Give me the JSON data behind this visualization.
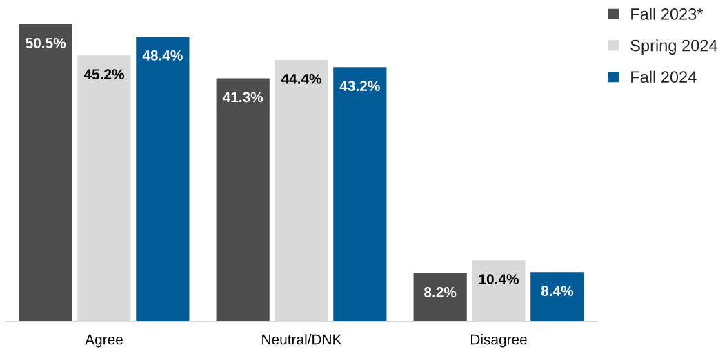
{
  "chart_data": {
    "type": "bar",
    "categories": [
      "Agree",
      "Neutral/DNK",
      "Disagree"
    ],
    "series": [
      {
        "name": "Fall 2023*",
        "color": "#4d4d4d",
        "values": [
          50.5,
          41.3,
          8.2
        ],
        "value_labels": [
          "50.5%",
          "41.3%",
          "8.2%"
        ]
      },
      {
        "name": "Spring 2024",
        "color": "#d9d9d9",
        "values": [
          45.2,
          44.4,
          10.4
        ],
        "value_labels": [
          "45.2%",
          "44.4%",
          "10.4%"
        ]
      },
      {
        "name": "Fall 2024",
        "color": "#005b96",
        "values": [
          48.4,
          43.2,
          8.4
        ],
        "value_labels": [
          "48.4%",
          "43.2%",
          "8.4%"
        ]
      }
    ],
    "legend": "top right",
    "tick_labels": "x",
    "grid": false
  }
}
